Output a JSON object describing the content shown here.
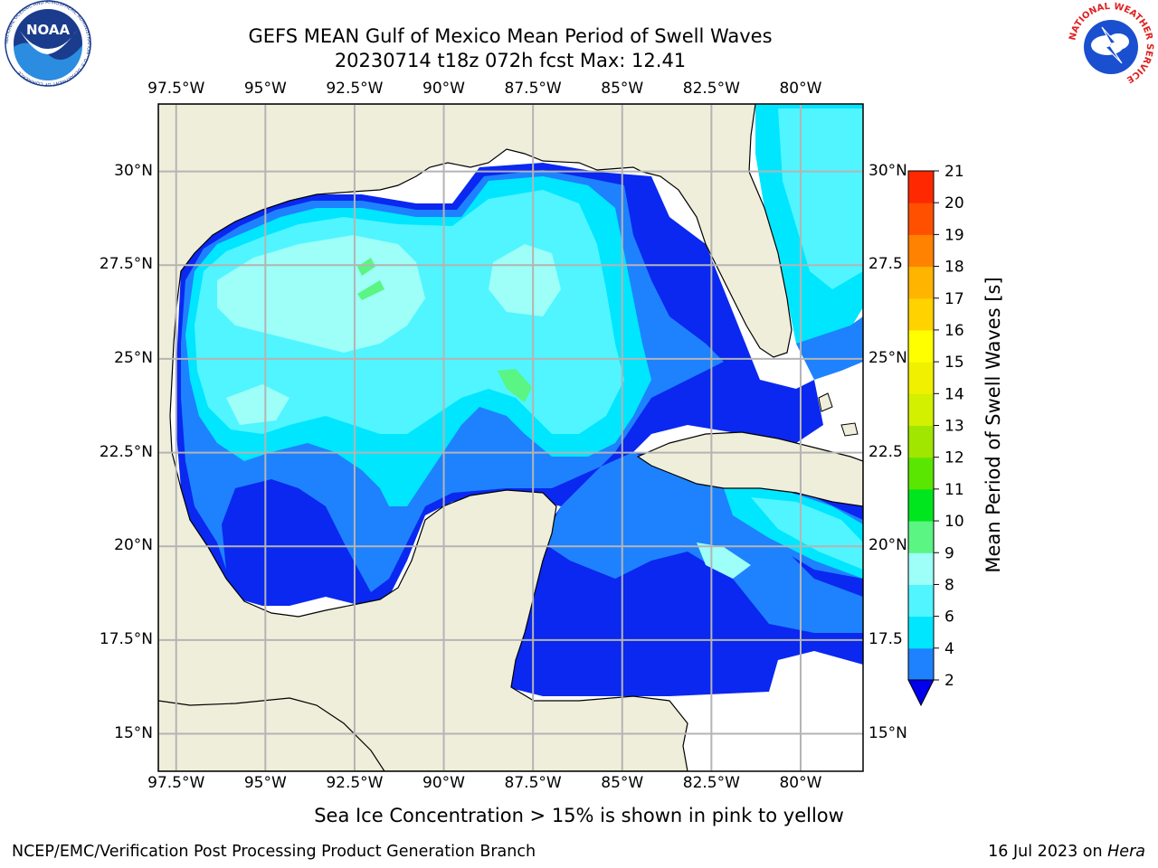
{
  "title": {
    "line1": "GEFS MEAN Gulf of Mexico Mean Period of Swell Waves",
    "line2": "20230714 t18z 072h fcst   Max: 12.41"
  },
  "map": {
    "lon_range": [
      -98.0,
      -78.25
    ],
    "lat_range": [
      14.0,
      31.8
    ],
    "lon_ticks": [
      "97.5°W",
      "95°W",
      "92.5°W",
      "90°W",
      "87.5°W",
      "85°W",
      "82.5°W",
      "80°W"
    ],
    "lon_tick_values": [
      -97.5,
      -95,
      -92.5,
      -90,
      -87.5,
      -85,
      -82.5,
      -80
    ],
    "lat_ticks_left": [
      "30°N",
      "27.5°N",
      "25°N",
      "22.5°N",
      "20°N",
      "17.5°N",
      "15°N"
    ],
    "lat_ticks_right": [
      "30°N",
      "27.5",
      "25°N",
      "22.5",
      "20°N",
      "17.5",
      "15°N"
    ],
    "lat_tick_values": [
      30,
      27.5,
      25,
      22.5,
      20,
      17.5,
      15
    ],
    "gridlines": true,
    "land_color": "#efeedb",
    "ocean_nodata_color": "#ffffff"
  },
  "colorbar": {
    "label": "Mean Period of Swell Waves [s]",
    "ticks": [
      "2",
      "4",
      "6",
      "8",
      "9",
      "10",
      "11",
      "12",
      "13",
      "14",
      "15",
      "16",
      "17",
      "18",
      "19",
      "20",
      "21"
    ],
    "colors": [
      "#0a28f0",
      "#1e82ff",
      "#00e6ff",
      "#50f5ff",
      "#9dfff8",
      "#5af582",
      "#00e61e",
      "#5ae600",
      "#a0e600",
      "#d2f000",
      "#f0f000",
      "#ffff00",
      "#ffd200",
      "#ffb400",
      "#ff8200",
      "#ff5000",
      "#ff2800",
      "#ff0000"
    ],
    "extend_color": "#0000ee"
  },
  "caption": "Sea Ice Concentration > 15% is shown in pink to yellow",
  "footer": {
    "left": "NCEP/EMC/Verification Post Processing Product Generation Branch",
    "right_prefix": "16 Jul 2023 on ",
    "right_machine": "Hera"
  },
  "logos": {
    "noaa_text": "NOAA",
    "noaa_ring": "NATIONAL OCEANIC AND ATMOSPHERIC ADMINISTRATION · U.S. DEPARTMENT OF COMMERCE",
    "nws_ring": "NATIONAL WEATHER SERVICE"
  }
}
